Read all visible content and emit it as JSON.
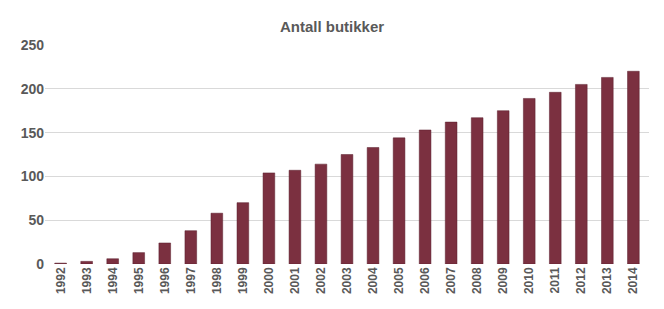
{
  "chart_data": {
    "type": "bar",
    "title": "Antall butikker",
    "categories": [
      "1992",
      "1993",
      "1994",
      "1995",
      "1996",
      "1997",
      "1998",
      "1999",
      "2000",
      "2001",
      "2002",
      "2003",
      "2004",
      "2005",
      "2006",
      "2007",
      "2008",
      "2009",
      "2010",
      "2011",
      "2012",
      "2013",
      "2014"
    ],
    "values": [
      1,
      3,
      6,
      13,
      24,
      38,
      58,
      70,
      104,
      107,
      114,
      125,
      133,
      144,
      153,
      162,
      167,
      175,
      189,
      196,
      205,
      213,
      220
    ],
    "color": "#7b3040",
    "ylim": [
      0,
      250
    ],
    "yticks": [
      0,
      50,
      100,
      150,
      200,
      250
    ],
    "grid": true
  }
}
